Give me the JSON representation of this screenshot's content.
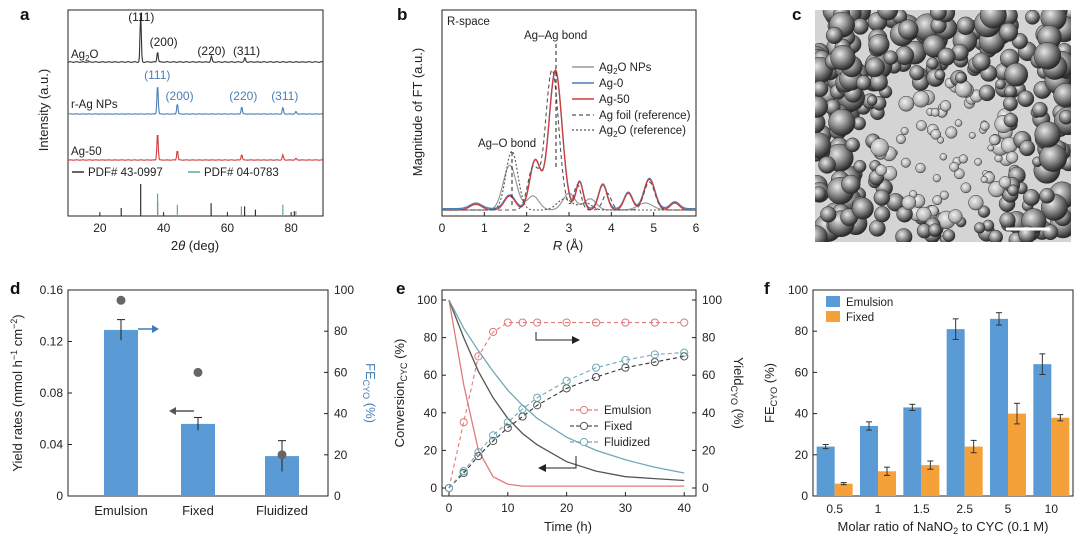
{
  "panels": {
    "a": "a",
    "b": "b",
    "c": "c",
    "d": "d",
    "e": "e",
    "f": "f"
  },
  "chart_data": [
    {
      "id": "a",
      "type": "line",
      "title": "",
      "xlabel": "2θ (deg)",
      "ylabel": "Intensity (a.u.)",
      "xlim": [
        10,
        90
      ],
      "xticks": [
        "20",
        "40",
        "60",
        "80"
      ],
      "series": [
        {
          "name": "Ag2O",
          "color": "#333333",
          "peaks": [
            [
              32.8,
              1.0
            ],
            [
              38.1,
              0.22
            ],
            [
              55.0,
              0.12
            ],
            [
              65.5,
              0.09
            ]
          ],
          "peak_labels": [
            "(111)",
            "(200)",
            "(220)",
            "(311)"
          ],
          "peak_label_x": [
            33,
            40,
            55,
            66
          ]
        },
        {
          "name": "r-Ag NPs",
          "color": "#4a7fb5",
          "peaks": [
            [
              38.1,
              1.0
            ],
            [
              44.3,
              0.35
            ],
            [
              64.5,
              0.25
            ],
            [
              77.4,
              0.22
            ],
            [
              81.5,
              0.08
            ]
          ],
          "peak_labels": [
            "(111)",
            "(200)",
            "(220)",
            "(311)"
          ],
          "peak_label_x": [
            38,
            45,
            65,
            78
          ]
        },
        {
          "name": "Ag-50",
          "color": "#d23b3b",
          "peaks": [
            [
              38.1,
              1.0
            ],
            [
              44.3,
              0.35
            ],
            [
              64.5,
              0.2
            ],
            [
              77.4,
              0.18
            ],
            [
              81.5,
              0.06
            ]
          ]
        }
      ],
      "references": [
        {
          "name": "PDF# 43-0997",
          "color": "#333333",
          "lines": [
            [
              26.7,
              0.25
            ],
            [
              32.8,
              1.0
            ],
            [
              38.1,
              0.45
            ],
            [
              54.9,
              0.4
            ],
            [
              65.4,
              0.3
            ],
            [
              68.8,
              0.2
            ],
            [
              81.0,
              0.15
            ]
          ]
        },
        {
          "name": "PDF# 04-0783",
          "color": "#5fa8a0",
          "lines": [
            [
              38.1,
              0.7
            ],
            [
              44.3,
              0.35
            ],
            [
              64.4,
              0.3
            ],
            [
              77.4,
              0.35
            ],
            [
              81.5,
              0.15
            ]
          ]
        }
      ]
    },
    {
      "id": "b",
      "type": "line",
      "title": "R-space",
      "xlabel": "R (Å)",
      "ylabel": "Magnitude of FT (a.u.)",
      "xlim": [
        0,
        6
      ],
      "xticks": [
        "0",
        "1",
        "2",
        "3",
        "4",
        "5",
        "6"
      ],
      "annotations": [
        "Ag–Ag bond",
        "Ag–O bond"
      ],
      "annotation_x": [
        2.7,
        1.65
      ],
      "series": [
        {
          "name": "Ag2O NPs",
          "color": "#999999",
          "style": "solid"
        },
        {
          "name": "Ag-0",
          "color": "#4a7fb5",
          "style": "solid"
        },
        {
          "name": "Ag-50",
          "color": "#d23b3b",
          "style": "solid"
        },
        {
          "name": "Ag foil (reference)",
          "color": "#555555",
          "style": "dashed"
        },
        {
          "name": "Ag2O (reference)",
          "color": "#555555",
          "style": "dashed"
        }
      ]
    },
    {
      "id": "d",
      "type": "bar",
      "categories": [
        "Emulsion",
        "Fixed",
        "Fluidized"
      ],
      "values": [
        0.129,
        0.056,
        0.031
      ],
      "errors": [
        0.008,
        0.005,
        0.012
      ],
      "fe_values": [
        95,
        60,
        20
      ],
      "xlabel": "",
      "ylabel": "Yield rates (mmol h⁻¹ cm⁻²)",
      "ylabel_right": "FE(CYO) (%)",
      "ylim": [
        0,
        0.16
      ],
      "ylim_right": [
        0,
        100
      ],
      "yticks": [
        "0",
        "0.04",
        "0.08",
        "0.12",
        "0.16"
      ],
      "yticks_right": [
        "0",
        "20",
        "40",
        "60",
        "80",
        "100"
      ],
      "bar_color": "#5b9bd5"
    },
    {
      "id": "e",
      "type": "line",
      "xlabel": "Time (h)",
      "ylabel": "Conversion(CYC) (%)",
      "ylabel_right": "Yield(CYO) (%)",
      "xlim": [
        0,
        42
      ],
      "ylim": [
        0,
        100
      ],
      "xticks": [
        "0",
        "10",
        "20",
        "30",
        "40"
      ],
      "yticks": [
        "0",
        "20",
        "40",
        "60",
        "80",
        "100"
      ],
      "legend": [
        "Emulsion",
        "Fixed",
        "Fluidized"
      ],
      "colors": [
        "#e07b7b",
        "#555555",
        "#6fa9b5"
      ],
      "conversion_x": [
        0,
        2.5,
        5,
        7.5,
        10,
        12.5,
        15,
        20,
        25,
        30,
        35,
        40
      ],
      "conversion": [
        [
          100,
          55,
          20,
          6,
          2,
          1,
          1,
          1,
          1,
          1,
          1,
          1
        ],
        [
          100,
          80,
          62,
          48,
          37,
          29,
          23,
          14,
          9,
          6,
          5,
          4
        ],
        [
          100,
          85,
          73,
          62,
          52,
          44,
          37,
          27,
          20,
          15,
          11,
          8
        ]
      ],
      "yield_x": [
        0,
        2.5,
        5,
        7.5,
        10,
        12.5,
        15,
        20,
        25,
        30,
        35,
        40
      ],
      "yield": [
        [
          0,
          35,
          70,
          83,
          88,
          88,
          88,
          88,
          88,
          88,
          88,
          88
        ],
        [
          0,
          8,
          17,
          25,
          32,
          38,
          44,
          53,
          59,
          64,
          67,
          70
        ],
        [
          0,
          9,
          19,
          28,
          35,
          42,
          48,
          57,
          64,
          68,
          71,
          72
        ]
      ]
    },
    {
      "id": "f",
      "type": "bar",
      "categories": [
        "0.5",
        "1",
        "1.5",
        "2.5",
        "5",
        "10"
      ],
      "series": [
        {
          "name": "Emulsion",
          "color": "#5b9bd5",
          "values": [
            24,
            34,
            43,
            81,
            86,
            64
          ],
          "errors": [
            1,
            2,
            1.5,
            5,
            3,
            5
          ]
        },
        {
          "name": "Fixed",
          "color": "#f5a13a",
          "values": [
            6,
            12,
            15,
            24,
            40,
            38
          ],
          "errors": [
            0.5,
            2,
            2,
            3,
            5,
            1.5
          ]
        }
      ],
      "xlabel": "Molar ratio of NaNO₂ to CYC (0.1 M)",
      "ylabel": "FE(CYO) (%)",
      "ylim": [
        0,
        100
      ],
      "yticks": [
        "0",
        "20",
        "40",
        "60",
        "80",
        "100"
      ]
    }
  ],
  "text": {
    "a_xlabel_pre": "2",
    "a_xlabel_theta": "θ",
    "a_xlabel_post": " (deg)",
    "a_ylabel": "Intensity (a.u.)",
    "a_ag2o": "Ag",
    "a_ag2o_sub": "2",
    "a_ag2o_post": "O",
    "a_ragnp": "r-Ag NPs",
    "a_ag50": "Ag-50",
    "a_ref1": "PDF# 43-0997",
    "a_ref2": "PDF# 04-0783",
    "b_title": "R-space",
    "b_ylabel": "Magnitude of FT (a.u.)",
    "b_xlabel": "R",
    "b_xunit": " (Å)",
    "b_agag": "Ag–Ag bond",
    "b_ago": "Ag–O bond",
    "b_l1": "Ag",
    "b_l1sub": "2",
    "b_l1post": "O NPs",
    "b_l2": "Ag-0",
    "b_l3": "Ag-50",
    "b_l4": "Ag foil (reference)",
    "b_l5": "Ag",
    "b_l5sub": "2",
    "b_l5post": "O (reference)",
    "d_ylabel_pre": "Yield rates (mmol h",
    "d_ylabel_sup1": "−1",
    "d_ylabel_mid": " cm",
    "d_ylabel_sup2": "−2",
    "d_ylabel_post": ")",
    "d_ylabel_r": "FE",
    "d_ylabel_r_sub": "CYO",
    "d_ylabel_r_post": " (%)",
    "e_xlabel": "Time (h)",
    "e_ylabel": "Conversion",
    "e_ylabel_sub": "CYC",
    "e_ylabel_post": " (%)",
    "e_ylabel_r": "Yield",
    "e_ylabel_r_sub": "CYO",
    "e_ylabel_r_post": " (%)",
    "f_ylabel": "FE",
    "f_ylabel_sub": "CYO",
    "f_ylabel_post": " (%)",
    "f_xlabel_pre": "Molar ratio of NaNO",
    "f_xlabel_sub": "2",
    "f_xlabel_post": " to CYC (0.1 M)"
  }
}
